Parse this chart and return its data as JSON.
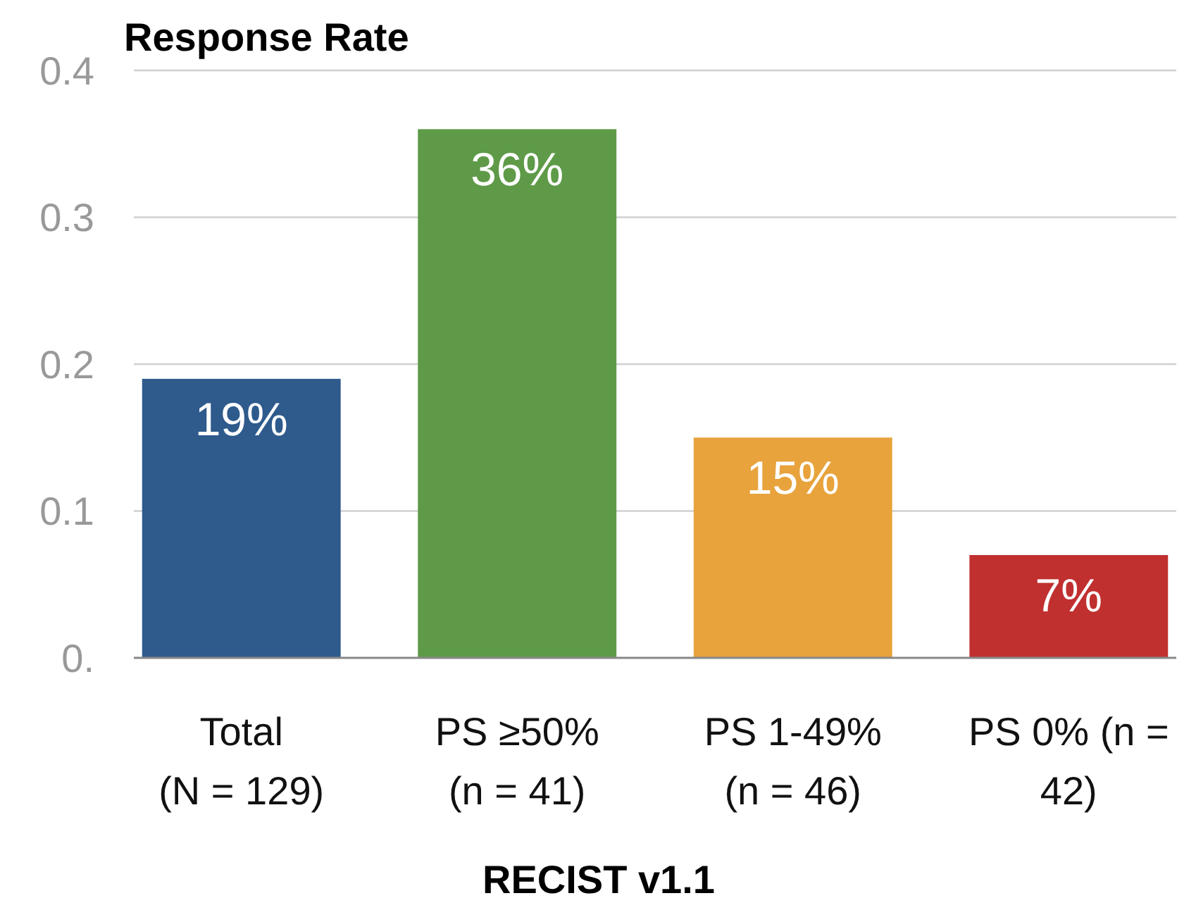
{
  "chart_data": {
    "type": "bar",
    "title": "Response Rate",
    "xlabel": "RECIST v1.1",
    "categories": [
      "Total\n(N = 129)",
      "PS ≥50%\n(n = 41)",
      "PS 1-49%\n(n = 46)",
      "PS 0% (n =\n42)"
    ],
    "values": [
      0.19,
      0.36,
      0.15,
      0.07
    ],
    "value_labels": [
      "19%",
      "36%",
      "15%",
      "7%"
    ],
    "colors": [
      "#2e5a8c",
      "#5e9a48",
      "#e8a33d",
      "#c0302f"
    ],
    "ylim": [
      0,
      0.4
    ],
    "yticks": [
      {
        "value": 0,
        "label": "0."
      },
      0.1,
      0.2,
      0.3,
      0.4
    ],
    "grid": "y"
  }
}
